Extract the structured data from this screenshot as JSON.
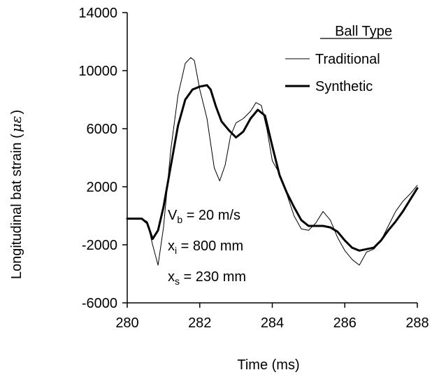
{
  "chart_data": {
    "type": "line",
    "xlabel": "Time (ms)",
    "ylabel": "Longitudinal bat strain (",
    "ylabel_symbol": "με",
    "ylabel_close": ")",
    "xlim": [
      280,
      288
    ],
    "ylim": [
      -6000,
      14000
    ],
    "xticks": [
      "280",
      "282",
      "284",
      "286",
      "288"
    ],
    "yticks": [
      "14000",
      "10000",
      "6000",
      "2000",
      "-2000",
      "-6000"
    ],
    "legend": {
      "title": "Ball Type",
      "position": "top-right"
    },
    "grid": false,
    "annotations": [
      {
        "base": "V",
        "sub": "b",
        "rest": " = 20 m/s"
      },
      {
        "base": "x",
        "sub": "i",
        "rest": " = 800 mm"
      },
      {
        "base": "x",
        "sub": "s",
        "rest": " = 230 mm"
      }
    ],
    "series": [
      {
        "name": "Traditional",
        "color": "#000000",
        "style": "thin",
        "x": [
          280.0,
          280.4,
          280.55,
          280.7,
          280.85,
          281.0,
          281.2,
          281.4,
          281.6,
          281.75,
          281.85,
          282.0,
          282.2,
          282.4,
          282.55,
          282.7,
          282.85,
          283.0,
          283.2,
          283.4,
          283.55,
          283.7,
          283.85,
          284.0,
          284.2,
          284.4,
          284.6,
          284.8,
          285.0,
          285.2,
          285.4,
          285.6,
          285.8,
          286.0,
          286.2,
          286.4,
          286.6,
          286.8,
          287.0,
          287.2,
          287.4,
          287.6,
          287.8,
          288.0
        ],
        "y": [
          -200,
          -200,
          -400,
          -2000,
          -3400,
          -800,
          4500,
          8300,
          10500,
          10900,
          10700,
          8700,
          6700,
          3300,
          2400,
          3500,
          5500,
          6400,
          6700,
          7200,
          7800,
          7600,
          6000,
          3800,
          2900,
          1500,
          0,
          -900,
          -1000,
          -500,
          300,
          -300,
          -1500,
          -2400,
          -3000,
          -3400,
          -2500,
          -2300,
          -1700,
          -700,
          300,
          1000,
          1500,
          2100
        ]
      },
      {
        "name": "Synthetic",
        "color": "#000000",
        "style": "thick",
        "x": [
          280.0,
          280.4,
          280.55,
          280.7,
          280.85,
          281.0,
          281.2,
          281.4,
          281.6,
          281.8,
          282.0,
          282.2,
          282.3,
          282.45,
          282.6,
          282.8,
          283.0,
          283.2,
          283.4,
          283.6,
          283.8,
          284.0,
          284.2,
          284.4,
          284.6,
          284.8,
          285.0,
          285.2,
          285.4,
          285.6,
          285.8,
          286.0,
          286.2,
          286.4,
          286.6,
          286.8,
          287.0,
          287.2,
          287.4,
          287.6,
          287.8,
          288.0
        ],
        "y": [
          -200,
          -200,
          -500,
          -1600,
          -1000,
          600,
          3400,
          6200,
          8000,
          8700,
          8900,
          9000,
          8700,
          7500,
          6500,
          5900,
          5400,
          5800,
          6700,
          7300,
          6900,
          4800,
          2800,
          1600,
          600,
          -300,
          -700,
          -700,
          -700,
          -800,
          -1100,
          -1700,
          -2200,
          -2400,
          -2300,
          -2200,
          -1700,
          -1000,
          -400,
          300,
          1100,
          1900
        ]
      }
    ]
  }
}
